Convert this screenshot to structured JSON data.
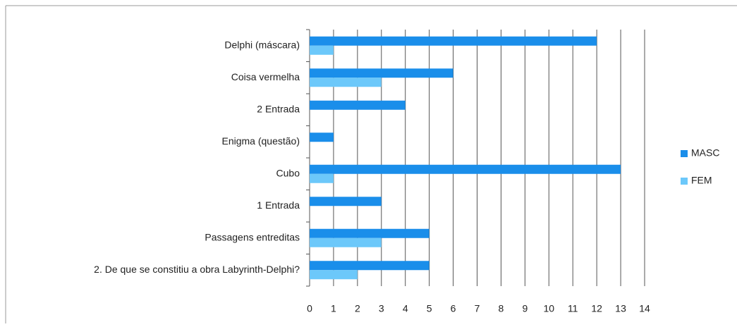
{
  "chart_data": {
    "type": "barh",
    "categories": [
      "Delphi (máscara)",
      "Coisa vermelha",
      "2 Entrada",
      "Enigma (questão)",
      "Cubo",
      "1 Entrada",
      "Passagens entreditas",
      "2. De que se constitiu a obra Labyrinth-Delphi?"
    ],
    "series": [
      {
        "name": "MASC",
        "color": "#1a8eea",
        "values": [
          12,
          6,
          4,
          1,
          13,
          3,
          5,
          5
        ]
      },
      {
        "name": "FEM",
        "color": "#6cc8fa",
        "values": [
          1,
          3,
          0,
          0,
          1,
          0,
          3,
          2
        ]
      }
    ],
    "xlim": [
      0,
      14
    ],
    "xticks": [
      0,
      1,
      2,
      3,
      4,
      5,
      6,
      7,
      8,
      9,
      10,
      11,
      12,
      13,
      14
    ],
    "grid": true,
    "legend": "right"
  }
}
